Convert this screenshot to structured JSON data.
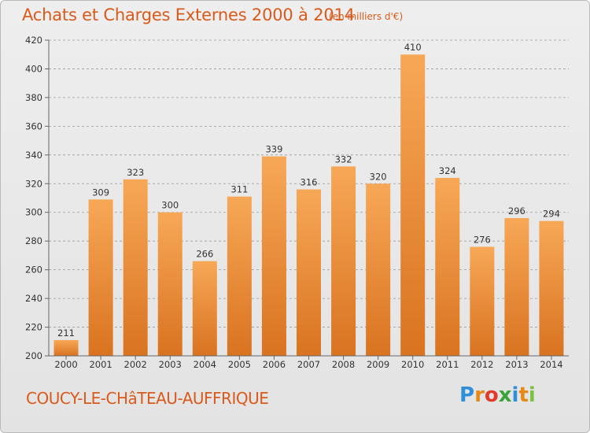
{
  "header": {
    "title": "Achats et Charges Externes 2000 à 2014",
    "unit": "(en milliers d'€)"
  },
  "footer": {
    "place": "COUCY-LE-CHâTEAU-AUFFRIQUE",
    "brand_letters": [
      "P",
      "r",
      "o",
      "x",
      "i",
      "t",
      "i"
    ],
    "brand_colors": [
      "#2f8fd8",
      "#e58a16",
      "#e23b2c",
      "#3ba33b",
      "#2f8fd8",
      "#e58a16",
      "#7cc242"
    ]
  },
  "colors": {
    "bar_top": "#f7a857",
    "bar_bottom": "#d97320",
    "grid": "#9a9a9a",
    "title": "#d95a1b"
  },
  "chart_data": {
    "type": "bar",
    "categories": [
      "2000",
      "2001",
      "2002",
      "2003",
      "2004",
      "2005",
      "2006",
      "2007",
      "2008",
      "2009",
      "2010",
      "2011",
      "2012",
      "2013",
      "2014"
    ],
    "values": [
      211,
      309,
      323,
      300,
      266,
      311,
      339,
      316,
      332,
      320,
      410,
      324,
      276,
      296,
      294
    ],
    "ylim": [
      200,
      420
    ],
    "yticks": [
      200,
      220,
      240,
      260,
      280,
      300,
      320,
      340,
      360,
      380,
      400,
      420
    ],
    "grid": "horizontal dashed"
  }
}
